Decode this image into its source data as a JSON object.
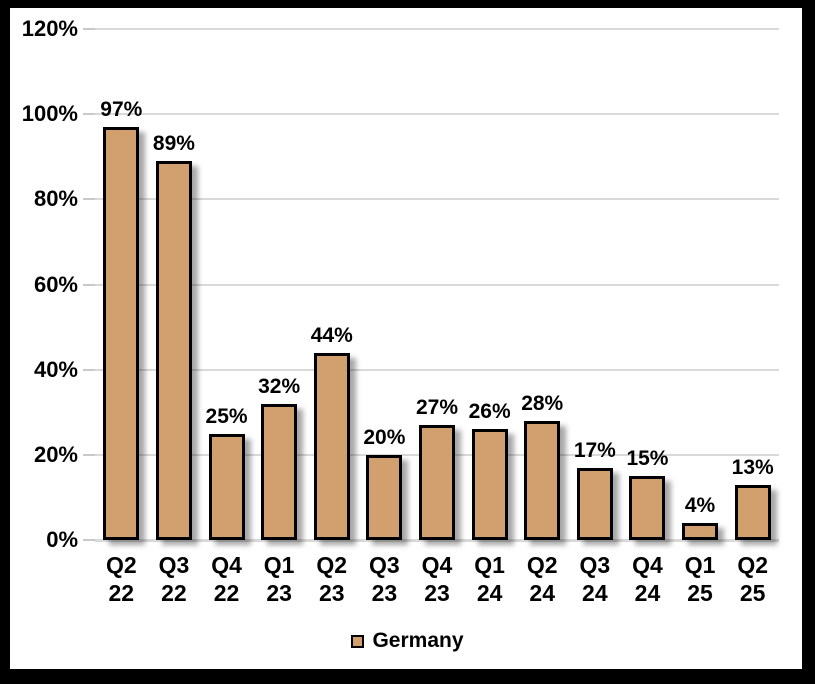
{
  "chart_data": {
    "type": "bar",
    "title": "",
    "xlabel": "",
    "ylabel": "",
    "categories": [
      [
        "Q2",
        "22"
      ],
      [
        "Q3",
        "22"
      ],
      [
        "Q4",
        "22"
      ],
      [
        "Q1",
        "23"
      ],
      [
        "Q2",
        "23"
      ],
      [
        "Q3",
        "23"
      ],
      [
        "Q4",
        "23"
      ],
      [
        "Q1",
        "24"
      ],
      [
        "Q2",
        "24"
      ],
      [
        "Q3",
        "24"
      ],
      [
        "Q4",
        "24"
      ],
      [
        "Q1",
        "25"
      ],
      [
        "Q2",
        "25"
      ]
    ],
    "series": [
      {
        "name": "Germany",
        "values": [
          97,
          89,
          25,
          32,
          44,
          20,
          27,
          26,
          28,
          17,
          15,
          4,
          13
        ],
        "value_labels": [
          "97%",
          "89%",
          "25%",
          "32%",
          "44%",
          "20%",
          "27%",
          "26%",
          "28%",
          "17%",
          "15%",
          "4%",
          "13%"
        ]
      }
    ],
    "ylim": [
      0,
      120
    ],
    "yticks": [
      {
        "value": 0,
        "label": "0%"
      },
      {
        "value": 20,
        "label": "20%"
      },
      {
        "value": 40,
        "label": "40%"
      },
      {
        "value": 60,
        "label": "60%"
      },
      {
        "value": 80,
        "label": "80%"
      },
      {
        "value": 100,
        "label": "100%"
      },
      {
        "value": 120,
        "label": "120%"
      }
    ],
    "grid": true,
    "legend": {
      "position": "bottom",
      "entries": [
        {
          "label": "Germany",
          "color": "#d2a06e"
        }
      ]
    },
    "colors": {
      "bar_fill": "#d2a06e",
      "bar_border": "#000000",
      "gridline": "#d9d9d9",
      "text": "#000000",
      "frame_border": "#000000",
      "background": "#ffffff"
    }
  }
}
